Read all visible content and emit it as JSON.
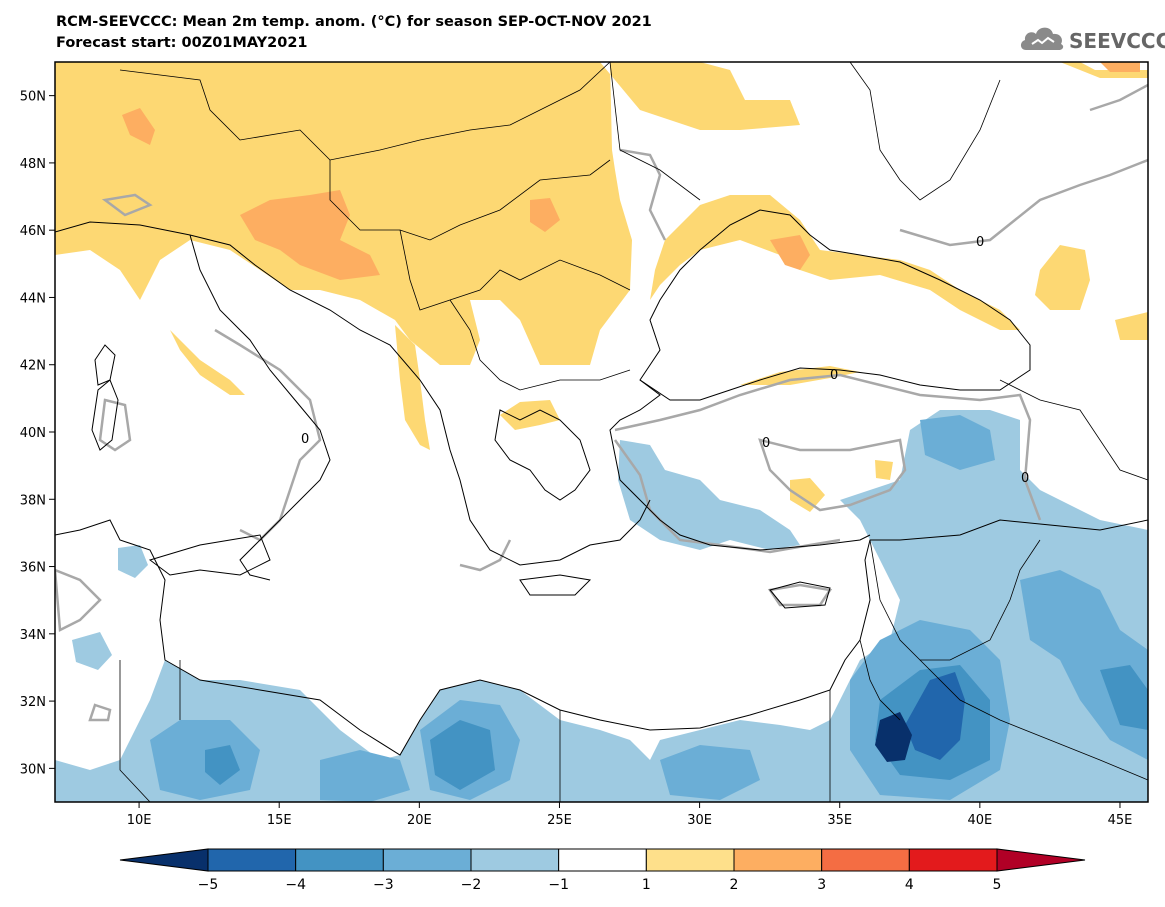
{
  "header": {
    "title_line1": "RCM-SEEVCCC: Mean 2m temp. anom. (°C) for season SEP-OCT-NOV 2021",
    "title_line2": "Forecast start: 00Z01MAY2021"
  },
  "logo": {
    "text": "SEEVCCC",
    "icon": "cloud-icon"
  },
  "map": {
    "extent": {
      "lon_min": 7,
      "lon_max": 46,
      "lat_min": 29,
      "lat_max": 51
    },
    "lat_ticks": [
      {
        "v": 50,
        "label": "50N"
      },
      {
        "v": 48,
        "label": "48N"
      },
      {
        "v": 46,
        "label": "46N"
      },
      {
        "v": 44,
        "label": "44N"
      },
      {
        "v": 42,
        "label": "42N"
      },
      {
        "v": 40,
        "label": "40N"
      },
      {
        "v": 38,
        "label": "38N"
      },
      {
        "v": 36,
        "label": "36N"
      },
      {
        "v": 34,
        "label": "34N"
      },
      {
        "v": 32,
        "label": "32N"
      },
      {
        "v": 30,
        "label": "30N"
      }
    ],
    "lon_ticks": [
      {
        "v": 10,
        "label": "10E"
      },
      {
        "v": 15,
        "label": "15E"
      },
      {
        "v": 20,
        "label": "20E"
      },
      {
        "v": 25,
        "label": "25E"
      },
      {
        "v": 30,
        "label": "30E"
      },
      {
        "v": 35,
        "label": "35E"
      },
      {
        "v": 40,
        "label": "40E"
      },
      {
        "v": 45,
        "label": "45E"
      }
    ],
    "contour_label": "0"
  },
  "colorbar": {
    "levels": [
      "-5",
      "-4",
      "-3",
      "-2",
      "-1",
      "1",
      "2",
      "3",
      "4",
      "5"
    ],
    "colors": [
      "#08306b",
      "#2166ac",
      "#4393c3",
      "#6baed6",
      "#9ecae1",
      "#ffffff",
      "#fee08b",
      "#fdae61",
      "#f46d43",
      "#e31a1c",
      "#b10026"
    ]
  }
}
